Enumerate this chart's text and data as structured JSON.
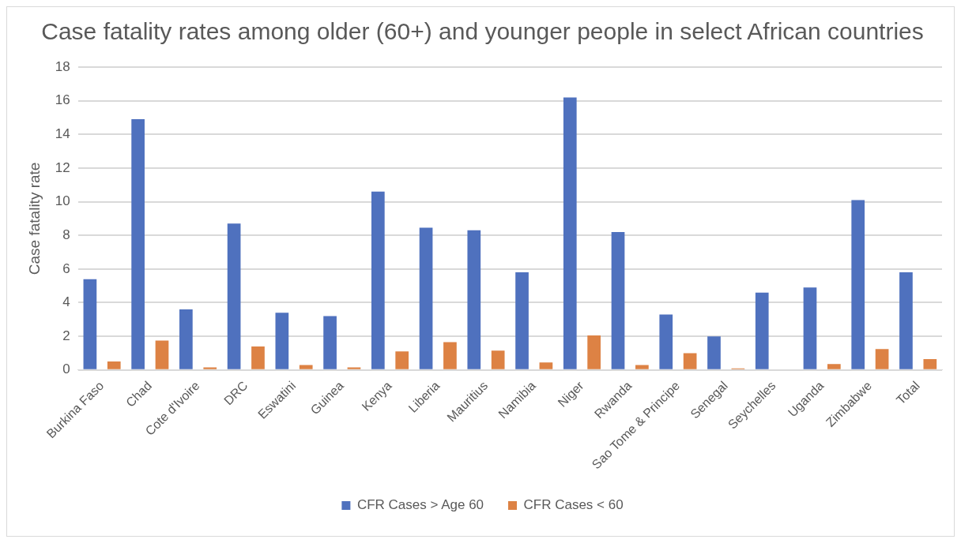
{
  "chart_data": {
    "type": "bar",
    "title": "Case fatality rates among older (60+) and younger people in select African countries",
    "ylabel": "Case fatality rate",
    "categories": [
      "Burkina Faso",
      "Chad",
      "Cote d'Ivoire",
      "DRC",
      "Eswatini",
      "Guinea",
      "Kenya",
      "Liberia",
      "Mauritius",
      "Namibia",
      "Niger",
      "Rwanda",
      "Sao Tome & Principe",
      "Senegal",
      "Seychelles",
      "Uganda",
      "Zimbabwe",
      "Total"
    ],
    "series": [
      {
        "name": "CFR Cases > Age 60",
        "color": "#4f71be",
        "values": [
          5.4,
          14.9,
          3.6,
          8.7,
          3.4,
          3.2,
          10.6,
          8.45,
          8.3,
          5.8,
          16.2,
          8.2,
          3.3,
          2.0,
          4.6,
          4.9,
          10.1,
          5.8
        ]
      },
      {
        "name": "CFR Cases < 60",
        "color": "#dd8244",
        "values": [
          0.5,
          1.75,
          0.15,
          1.4,
          0.3,
          0.15,
          1.1,
          1.65,
          1.15,
          0.45,
          2.05,
          0.3,
          1.0,
          0.1,
          0,
          0.35,
          1.25,
          0.65
        ]
      }
    ],
    "ylim": [
      0,
      18
    ],
    "yticks": [
      0,
      2,
      4,
      6,
      8,
      10,
      12,
      14,
      16,
      18
    ],
    "grid": "y",
    "legend": "bottom"
  }
}
